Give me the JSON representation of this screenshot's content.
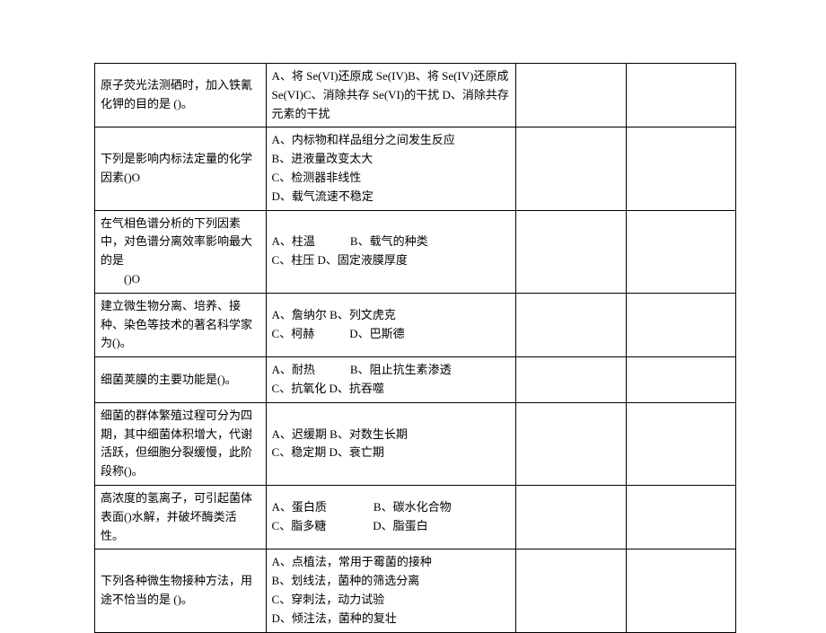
{
  "table": {
    "columns": 4,
    "rows": [
      {
        "q": "原子荧光法测硒时，加入铁氰化钾的目的是 ()。",
        "a": "A、将 Se(VI)还原成 Se(IV)B、将 Se(IV)还原成 Se(VI)C、消除共存 Se(VI)的干扰 D、消除共存元素的干扰",
        "c3": "",
        "c4": ""
      },
      {
        "q": "下列是影响内标法定量的化学因素()O",
        "a": "A、内标物和样品组分之间发生反应\nB、进液量改变太大\nC、检测器非线性\nD、载气流速不稳定",
        "c3": "",
        "c4": ""
      },
      {
        "q": "在气相色谱分析的下列因素中，对色谱分离效率影响最大的是\n　　()O",
        "a": "A、柱温　　　B、载气的种类\nC、柱压 D、固定液膜厚度",
        "c3": "",
        "c4": ""
      },
      {
        "q": "建立微生物分离、培养、接种、染色等技术的著名科学家为()。",
        "a": "A、詹纳尔 B、列文虎克\nC、柯赫　　　D、巴斯德",
        "c3": "",
        "c4": ""
      },
      {
        "q": "细菌荚膜的主要功能是()。",
        "a": "A、耐热　　　B、阻止抗生素渗透\nC、抗氧化 D、抗吞噬",
        "c3": "",
        "c4": ""
      },
      {
        "q": "细菌的群体繁殖过程可分为四期，其中细菌体积增大，代谢活跃，但细胞分裂缓慢，此阶段称()。",
        "a": "A、迟缓期 B、对数生长期\nC、稳定期 D、衰亡期",
        "c3": "",
        "c4": ""
      },
      {
        "q": "高浓度的氢离子，可引起菌体表面()水解，并破坏酶类活性。",
        "a": "A、蛋白质　　　　B、碳水化合物\nC、脂多糖　　　　D、脂蛋白",
        "c3": "",
        "c4": ""
      },
      {
        "q": "下列各种微生物接种方法，用途不恰当的是 ()。",
        "a": "A、点植法，常用于霉菌的接种\nB、划线法，菌种的筛选分离\nC、穿刺法，动力试验\nD、倾注法，菌种的复壮",
        "c3": "",
        "c4": ""
      }
    ]
  }
}
